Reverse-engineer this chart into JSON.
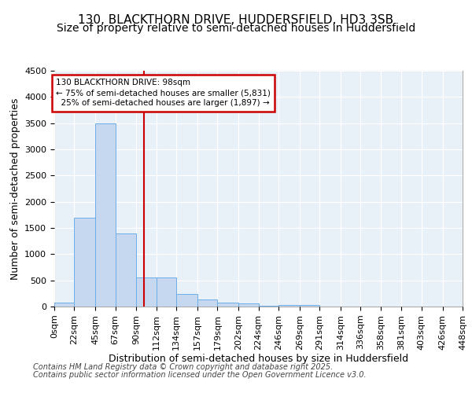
{
  "title_line1": "130, BLACKTHORN DRIVE, HUDDERSFIELD, HD3 3SB",
  "title_line2": "Size of property relative to semi-detached houses in Huddersfield",
  "xlabel": "Distribution of semi-detached houses by size in Huddersfield",
  "ylabel": "Number of semi-detached properties",
  "footer_line1": "Contains HM Land Registry data © Crown copyright and database right 2025.",
  "footer_line2": "Contains public sector information licensed under the Open Government Licence v3.0.",
  "property_label": "130 BLACKTHORN DRIVE: 98sqm",
  "pct_smaller": 75,
  "num_smaller": 5831,
  "pct_larger": 25,
  "num_larger": 1897,
  "bin_edges": [
    0,
    22,
    45,
    67,
    90,
    112,
    134,
    157,
    179,
    202,
    224,
    246,
    269,
    291,
    314,
    336,
    358,
    381,
    403,
    426,
    448
  ],
  "bin_labels": [
    "0sqm",
    "22sqm",
    "45sqm",
    "67sqm",
    "90sqm",
    "112sqm",
    "134sqm",
    "157sqm",
    "179sqm",
    "202sqm",
    "224sqm",
    "246sqm",
    "269sqm",
    "291sqm",
    "314sqm",
    "336sqm",
    "358sqm",
    "381sqm",
    "403sqm",
    "426sqm",
    "448sqm"
  ],
  "counts": [
    80,
    1700,
    3500,
    1400,
    550,
    550,
    240,
    140,
    80,
    55,
    20,
    30,
    25,
    0,
    0,
    0,
    0,
    0,
    0,
    0
  ],
  "bar_color": "#c5d8f0",
  "bar_edge_color": "#6daee8",
  "vline_color": "#cc0000",
  "vline_value": 98,
  "ylim": [
    0,
    4500
  ],
  "yticks": [
    0,
    500,
    1000,
    1500,
    2000,
    2500,
    3000,
    3500,
    4000,
    4500
  ],
  "bg_color": "#ffffff",
  "plot_bg_color": "#e8f0f8",
  "grid_color": "#ffffff",
  "annotation_box_color": "#cc0000",
  "title_fontsize": 11,
  "subtitle_fontsize": 10,
  "axis_label_fontsize": 9,
  "tick_fontsize": 8,
  "footer_fontsize": 7
}
